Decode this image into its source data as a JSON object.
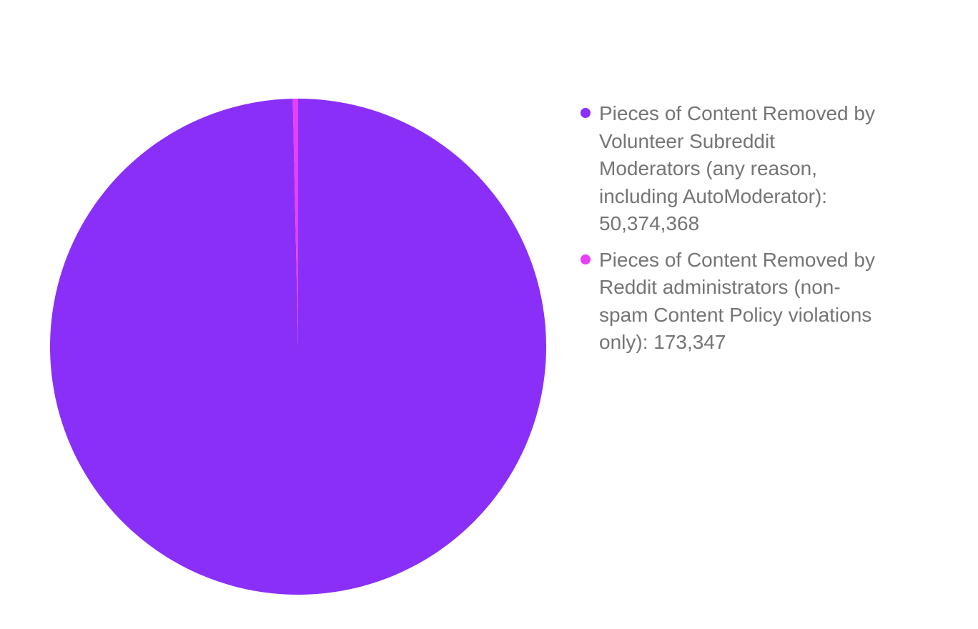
{
  "chart_data": {
    "type": "pie",
    "title": "",
    "start_angle": "top, clockwise",
    "legend_position": "right",
    "slices": [
      {
        "label": "Pieces of Content Removed by Volunteer Subreddit Moderators (any reason, including AutoModerator): 50,374,368",
        "value": 50374368,
        "color": "#8a2ff7"
      },
      {
        "label": "Pieces of Content Removed by Reddit administrators (non-spam Content Policy violations only): 173,347",
        "value": 173347,
        "color": "#e63ff7"
      }
    ]
  }
}
